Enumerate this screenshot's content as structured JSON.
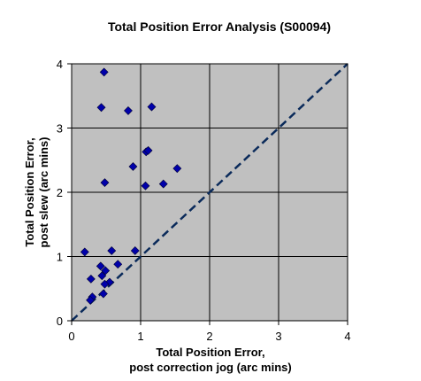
{
  "chart_data": {
    "type": "scatter",
    "title": "Total Position Error Analysis (S00094)",
    "xlabel": [
      "Total Position Error,",
      "post correction jog (arc mins)"
    ],
    "ylabel": [
      "Total Position Error,",
      "post slew (arc mins)"
    ],
    "xlim": [
      0,
      4
    ],
    "ylim": [
      0,
      4
    ],
    "x_ticks": [
      "0",
      "1",
      "2",
      "3",
      "4"
    ],
    "y_ticks": [
      "0",
      "1",
      "2",
      "3",
      "4"
    ],
    "grid": true,
    "plot_background": "#c0c0c0",
    "marker_color": "#0000aa",
    "reference_line": {
      "style": "dashed",
      "color": "#0a2a5a",
      "from": [
        0,
        0
      ],
      "to": [
        4,
        4
      ]
    },
    "series": [
      {
        "points": [
          [
            0.47,
            3.87
          ],
          [
            0.43,
            3.32
          ],
          [
            0.82,
            3.27
          ],
          [
            1.16,
            3.33
          ],
          [
            1.08,
            2.63
          ],
          [
            1.11,
            2.65
          ],
          [
            0.89,
            2.4
          ],
          [
            1.53,
            2.37
          ],
          [
            0.48,
            2.15
          ],
          [
            1.07,
            2.1
          ],
          [
            1.33,
            2.13
          ],
          [
            0.19,
            1.07
          ],
          [
            0.58,
            1.09
          ],
          [
            0.92,
            1.09
          ],
          [
            0.42,
            0.85
          ],
          [
            0.67,
            0.88
          ],
          [
            0.49,
            0.78
          ],
          [
            0.44,
            0.7
          ],
          [
            0.28,
            0.65
          ],
          [
            0.55,
            0.6
          ],
          [
            0.48,
            0.57
          ],
          [
            0.3,
            0.37
          ],
          [
            0.27,
            0.32
          ],
          [
            0.46,
            0.42
          ]
        ]
      }
    ]
  }
}
